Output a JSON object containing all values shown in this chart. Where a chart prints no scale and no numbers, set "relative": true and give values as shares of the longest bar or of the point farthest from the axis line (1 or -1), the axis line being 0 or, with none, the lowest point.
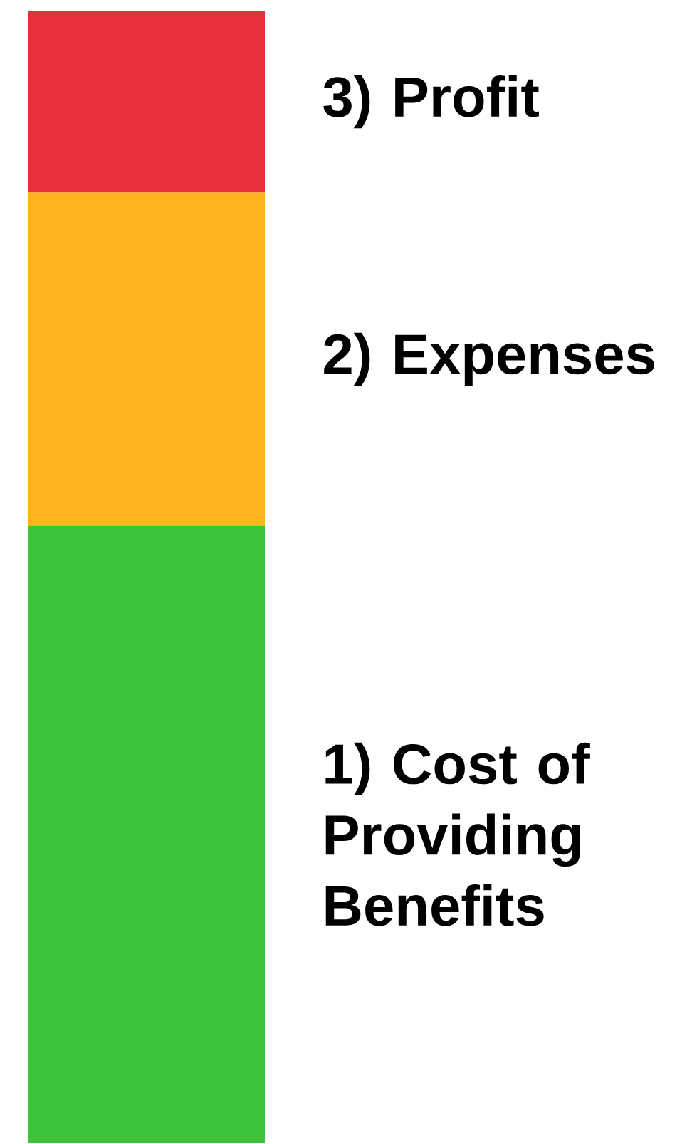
{
  "chart_data": {
    "type": "bar",
    "stacked": true,
    "relative": true,
    "categories": [
      null
    ],
    "series": [
      {
        "name": "1) Cost of Providing Benefits",
        "color": "#3cc43c",
        "values": [
          0.545
        ]
      },
      {
        "name": "2) Expenses",
        "color": "#ffb41e",
        "values": [
          0.295
        ]
      },
      {
        "name": "3) Profit",
        "color": "#e8303a",
        "values": [
          0.16
        ]
      }
    ]
  }
}
